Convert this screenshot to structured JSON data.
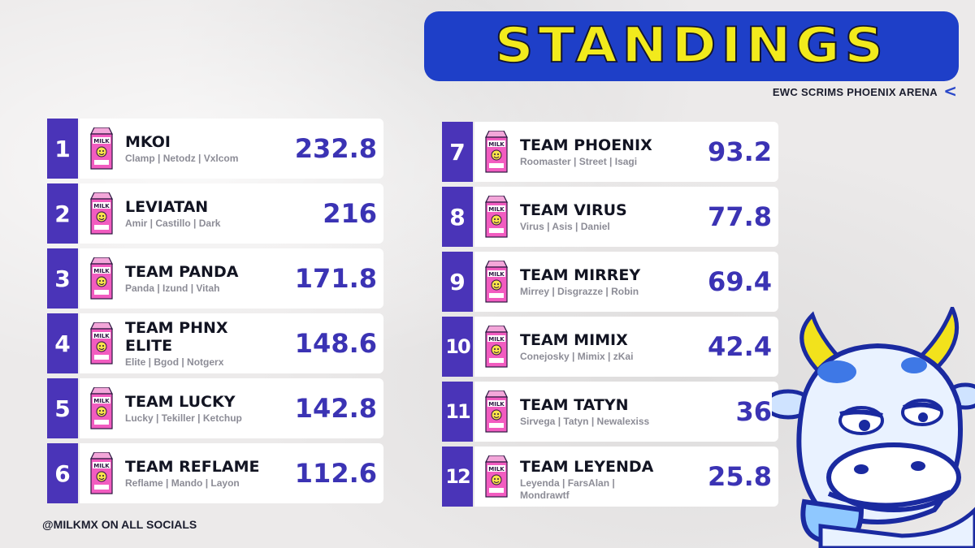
{
  "header": {
    "title": "STANDINGS",
    "subtitle": "EWC SCRIMS PHOENIX ARENA",
    "chevron": "<"
  },
  "footer": {
    "text": "@MILKMX ON ALL SOCIALS"
  },
  "colors": {
    "rank_bg": "#4a34b8",
    "score": "#3b33b4",
    "title_yellow": "#f2ea1c",
    "banner_blue": "#1e3fc8"
  },
  "logo_icon": "milk-carton-icon",
  "standings": [
    {
      "rank": "1",
      "team": "MKOI",
      "players": "Clamp | Netodz | Vxlcom",
      "score": "232.8"
    },
    {
      "rank": "2",
      "team": "LEVIATAN",
      "players": "Amir | Castillo | Dark",
      "score": "216"
    },
    {
      "rank": "3",
      "team": "TEAM PANDA",
      "players": "Panda | Izund | Vitah",
      "score": "171.8"
    },
    {
      "rank": "4",
      "team": "TEAM PHNX",
      "team2": "ELITE",
      "players": "Elite | Bgod | Notgerx",
      "score": "148.6"
    },
    {
      "rank": "5",
      "team": "TEAM LUCKY",
      "players": "Lucky | Tekiller | Ketchup",
      "score": "142.8"
    },
    {
      "rank": "6",
      "team": "TEAM REFLAME",
      "players": "Reflame | Mando | Layon",
      "score": "112.6"
    },
    {
      "rank": "7",
      "team": "TEAM PHOENIX",
      "players": "Roomaster | Street | Isagi",
      "score": "93.2"
    },
    {
      "rank": "8",
      "team": "TEAM VIRUS",
      "players": "Virus | Asis | Daniel",
      "score": "77.8"
    },
    {
      "rank": "9",
      "team": "TEAM MIRREY",
      "players": "Mirrey | Disgrazze | Robin",
      "score": "69.4"
    },
    {
      "rank": "10",
      "team": "TEAM MIMIX",
      "players": "Conejosky | Mimix | zKai",
      "score": "42.4"
    },
    {
      "rank": "11",
      "team": "TEAM TATYN",
      "players": "Sirvega | Tatyn | Newalexiss",
      "score": "36"
    },
    {
      "rank": "12",
      "team": "TEAM LEYENDA",
      "players": "Leyenda | FarsAlan |",
      "players2": "Mondrawtf",
      "score": "25.8"
    }
  ]
}
